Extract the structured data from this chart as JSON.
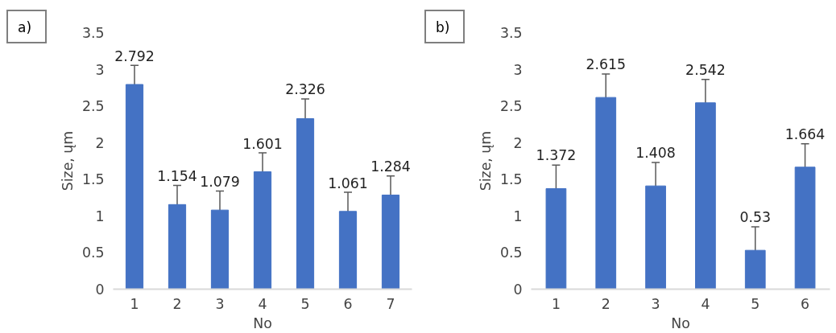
{
  "chart_data": [
    {
      "type": "bar",
      "annotations": [
        "a)"
      ],
      "xlabel": "No",
      "ylabel": "Size, ųm",
      "categories": [
        "1",
        "2",
        "3",
        "4",
        "5",
        "6",
        "7"
      ],
      "values": [
        2.792,
        1.154,
        1.079,
        1.601,
        2.326,
        1.061,
        1.284
      ],
      "errors": [
        0.26,
        0.26,
        0.26,
        0.26,
        0.27,
        0.26,
        0.26
      ],
      "color": "#4472c4",
      "data_labels": true,
      "ylim": [
        0,
        3.5
      ],
      "yticks": [
        0,
        0.5,
        1,
        1.5,
        2,
        2.5,
        3,
        3.5
      ],
      "grid": false
    },
    {
      "type": "bar",
      "annotations": [
        "b)"
      ],
      "xlabel": "No",
      "ylabel": "Size, ųm",
      "categories": [
        "1",
        "2",
        "3",
        "4",
        "5",
        "6"
      ],
      "values": [
        1.372,
        2.615,
        1.408,
        2.542,
        0.53,
        1.664
      ],
      "errors": [
        0.32,
        0.32,
        0.32,
        0.32,
        0.32,
        0.32
      ],
      "color": "#4472c4",
      "data_labels": true,
      "ylim": [
        0,
        3.5
      ],
      "yticks": [
        0,
        0.5,
        1,
        1.5,
        2,
        2.5,
        3,
        3.5
      ],
      "grid": false
    }
  ]
}
